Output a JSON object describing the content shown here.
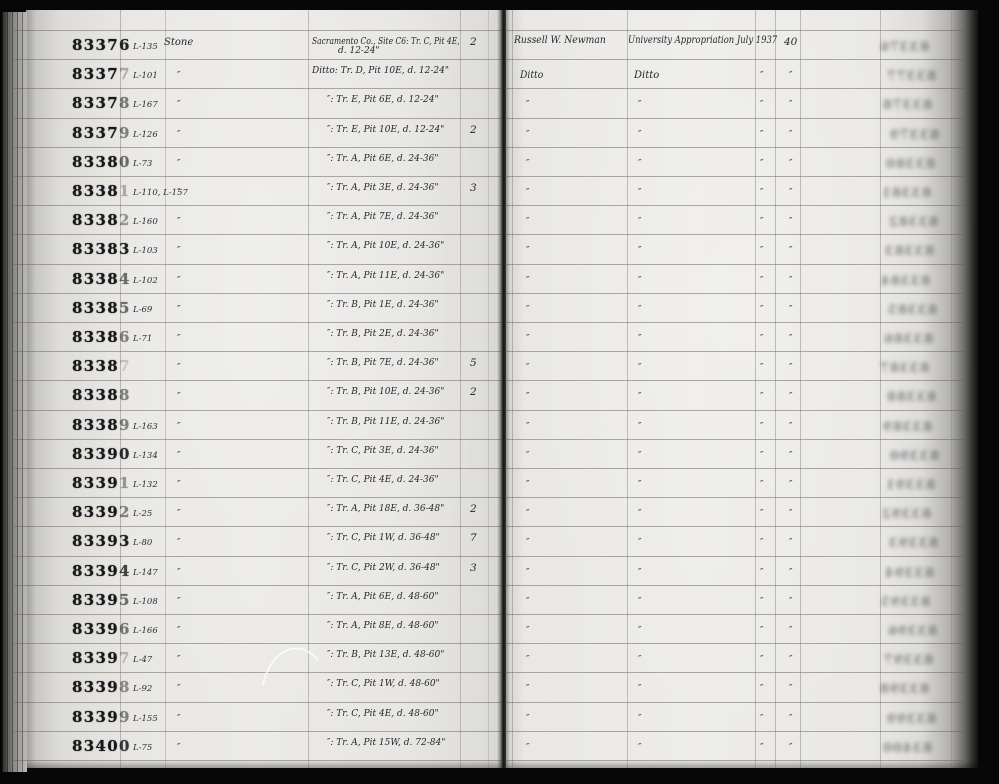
{
  "palette": {
    "background": "#070707",
    "paper": "#e9e8e4",
    "ink": "#26262c",
    "stamp_ink": "#17171a",
    "rule_line": "#685f56"
  },
  "right_margin_smudges": {
    "legible": false,
    "one_per_row": true
  },
  "rows": [
    {
      "number": "83376",
      "last_digit_opacity": 0.95,
      "catalog_no": "L-135",
      "object": "Stone",
      "description": "Sacramento Co., Site C6: Tr. C, Pit 4E,",
      "description_line2": "d. 12-24\"",
      "count": "2",
      "collector": "Russell W. Newman",
      "acquisition": "University Appropriation July 1937",
      "mark1": "",
      "mark2": "40"
    },
    {
      "number": "83377",
      "last_digit_opacity": 0.3,
      "catalog_no": "L-101",
      "object": "″",
      "description": "Ditto: Tr. D, Pit 10E, d. 12-24\"",
      "count": "",
      "collector": "Ditto",
      "acquisition": "Ditto",
      "mark1": "″",
      "mark2": "″"
    },
    {
      "number": "83378",
      "last_digit_opacity": 0.55,
      "catalog_no": "L-167",
      "object": "″",
      "description": "″: Tr. E, Pit 6E, d. 12-24\"",
      "count": "",
      "collector": "″",
      "acquisition": "″",
      "mark1": "″",
      "mark2": "″"
    },
    {
      "number": "83379",
      "last_digit_opacity": 0.5,
      "catalog_no": "L-126",
      "object": "″",
      "description": "″: Tr. E, Pit 10E, d. 12-24\"",
      "count": "2",
      "collector": "″",
      "acquisition": "″",
      "mark1": "″",
      "mark2": "″"
    },
    {
      "number": "83380",
      "last_digit_opacity": 0.6,
      "catalog_no": "L-73",
      "object": "″",
      "description": "″: Tr. A, Pit 6E, d. 24-36\"",
      "count": "",
      "collector": "″",
      "acquisition": "″",
      "mark1": "″",
      "mark2": "″"
    },
    {
      "number": "83381",
      "last_digit_opacity": 0.3,
      "catalog_no": "L-110, L-157",
      "object": "″",
      "description": "″: Tr. A, Pit 3E, d. 24-36\"",
      "count": "3",
      "collector": "″",
      "acquisition": "″",
      "mark1": "″",
      "mark2": "″"
    },
    {
      "number": "83382",
      "last_digit_opacity": 0.4,
      "catalog_no": "L-160",
      "object": "″",
      "description": "″: Tr. A, Pit 7E, d. 24-36\"",
      "count": "",
      "collector": "″",
      "acquisition": "″",
      "mark1": "″",
      "mark2": "″"
    },
    {
      "number": "83383",
      "last_digit_opacity": 0.95,
      "catalog_no": "L-103",
      "object": "″",
      "description": "″: Tr. A, Pit 10E, d. 24-36\"",
      "count": "",
      "collector": "″",
      "acquisition": "″",
      "mark1": "″",
      "mark2": "″"
    },
    {
      "number": "83384",
      "last_digit_opacity": 0.6,
      "catalog_no": "L-102",
      "object": "″",
      "description": "″: Tr. A, Pit 11E, d. 24-36\"",
      "count": "",
      "collector": "″",
      "acquisition": "″",
      "mark1": "″",
      "mark2": "″"
    },
    {
      "number": "83385",
      "last_digit_opacity": 0.6,
      "catalog_no": "L-69",
      "object": "″",
      "description": "″: Tr. B, Pit 1E, d. 24-36\"",
      "count": "",
      "collector": "″",
      "acquisition": "″",
      "mark1": "″",
      "mark2": "″"
    },
    {
      "number": "83386",
      "last_digit_opacity": 0.5,
      "catalog_no": "L-71",
      "object": "″",
      "description": "″: Tr. B, Pit 2E, d. 24-36\"",
      "count": "",
      "collector": "″",
      "acquisition": "″",
      "mark1": "″",
      "mark2": "″"
    },
    {
      "number": "83387",
      "last_digit_opacity": 0.18,
      "catalog_no": "",
      "object": "″",
      "description": "″: Tr. B, Pit 7E, d. 24-36\"",
      "count": "5",
      "collector": "″",
      "acquisition": "″",
      "mark1": "″",
      "mark2": "″"
    },
    {
      "number": "83388",
      "last_digit_opacity": 0.5,
      "catalog_no": "",
      "object": "″",
      "description": "″: Tr. B, Pit 10E, d. 24-36\"",
      "count": "2",
      "collector": "″",
      "acquisition": "″",
      "mark1": "″",
      "mark2": "″"
    },
    {
      "number": "83389",
      "last_digit_opacity": 0.5,
      "catalog_no": "L-163",
      "object": "″",
      "description": "″: Tr. B, Pit 11E, d. 24-36\"",
      "count": "",
      "collector": "″",
      "acquisition": "″",
      "mark1": "″",
      "mark2": "″"
    },
    {
      "number": "83390",
      "last_digit_opacity": 0.9,
      "catalog_no": "L-134",
      "object": "″",
      "description": "″: Tr. C, Pit 3E, d. 24-36\"",
      "count": "",
      "collector": "″",
      "acquisition": "″",
      "mark1": "″",
      "mark2": "″"
    },
    {
      "number": "83391",
      "last_digit_opacity": 0.4,
      "catalog_no": "L-132",
      "object": "″",
      "description": "″: Tr. C, Pit 4E, d. 24-36\"",
      "count": "",
      "collector": "″",
      "acquisition": "″",
      "mark1": "″",
      "mark2": "″"
    },
    {
      "number": "83392",
      "last_digit_opacity": 0.5,
      "catalog_no": "L-25",
      "object": "″",
      "description": "″: Tr. A, Pit 18E, d. 36-48\"",
      "count": "2",
      "collector": "″",
      "acquisition": "″",
      "mark1": "″",
      "mark2": "″"
    },
    {
      "number": "83393",
      "last_digit_opacity": 0.95,
      "catalog_no": "L-80",
      "object": "″",
      "description": "″: Tr. C, Pit 1W, d. 36-48\"",
      "count": "7",
      "collector": "″",
      "acquisition": "″",
      "mark1": "″",
      "mark2": "″"
    },
    {
      "number": "83394",
      "last_digit_opacity": 0.8,
      "catalog_no": "L-147",
      "object": "″",
      "description": "″: Tr. C, Pit 2W, d. 36-48\"",
      "count": "3",
      "collector": "″",
      "acquisition": "″",
      "mark1": "″",
      "mark2": "″"
    },
    {
      "number": "83395",
      "last_digit_opacity": 0.6,
      "catalog_no": "L-108",
      "object": "″",
      "description": "″: Tr. A, Pit 6E, d. 48-60\"",
      "count": "",
      "collector": "″",
      "acquisition": "″",
      "mark1": "″",
      "mark2": "″"
    },
    {
      "number": "83396",
      "last_digit_opacity": 0.55,
      "catalog_no": "L-166",
      "object": "″",
      "description": "″: Tr. A, Pit 8E, d. 48-60\"",
      "count": "",
      "collector": "″",
      "acquisition": "″",
      "mark1": "″",
      "mark2": "″"
    },
    {
      "number": "83397",
      "last_digit_opacity": 0.25,
      "catalog_no": "L-47",
      "object": "″",
      "description": "″: Tr. B, Pit 13E, d. 48-60\"",
      "count": "",
      "collector": "″",
      "acquisition": "″",
      "mark1": "″",
      "mark2": "″"
    },
    {
      "number": "83398",
      "last_digit_opacity": 0.45,
      "catalog_no": "L-92",
      "object": "″",
      "description": "″: Tr. C, Pit 1W, d. 48-60\"",
      "count": "",
      "collector": "″",
      "acquisition": "″",
      "mark1": "″",
      "mark2": "″"
    },
    {
      "number": "83399",
      "last_digit_opacity": 0.5,
      "catalog_no": "L-155",
      "object": "″",
      "description": "″: Tr. C, Pit 4E, d. 48-60\"",
      "count": "",
      "collector": "″",
      "acquisition": "″",
      "mark1": "″",
      "mark2": "″"
    },
    {
      "number": "83400",
      "last_digit_opacity": 0.85,
      "catalog_no": "L-75",
      "object": "″",
      "description": "″: Tr. A, Pit 15W, d. 72-84\"",
      "count": "",
      "collector": "″",
      "acquisition": "″",
      "mark1": "″",
      "mark2": "″"
    }
  ]
}
